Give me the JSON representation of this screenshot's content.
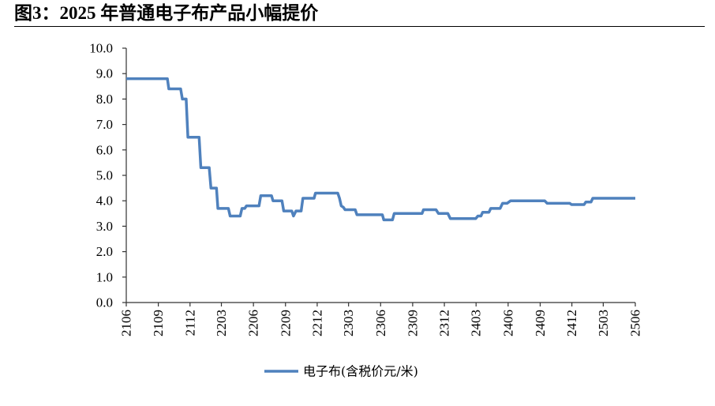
{
  "chart_data": {
    "type": "line",
    "title": "图3：2025 年普通电子布产品小幅提价",
    "x_ticks": [
      "2106",
      "2109",
      "2112",
      "2203",
      "2206",
      "2209",
      "2212",
      "2303",
      "2306",
      "2309",
      "2312",
      "2403",
      "2406",
      "2409",
      "2412",
      "2503",
      "2506"
    ],
    "xlim": [
      "2021-06-01",
      "2025-06-01"
    ],
    "y_ticks": [
      "0.0",
      "1.0",
      "2.0",
      "3.0",
      "4.0",
      "5.0",
      "6.0",
      "7.0",
      "8.0",
      "9.0",
      "10.0"
    ],
    "ylim": [
      0,
      10
    ],
    "grid": false,
    "legend": "bottom",
    "series": [
      {
        "name": "电子布(含税价元/米)",
        "color": "#4F81BD",
        "points": [
          [
            "2021-06-01",
            8.8
          ],
          [
            "2021-09-27",
            8.8
          ],
          [
            "2021-10-01",
            8.4
          ],
          [
            "2021-11-04",
            8.4
          ],
          [
            "2021-11-09",
            8.0
          ],
          [
            "2021-11-20",
            8.0
          ],
          [
            "2021-11-25",
            6.5
          ],
          [
            "2021-12-27",
            6.5
          ],
          [
            "2022-01-01",
            5.3
          ],
          [
            "2022-01-25",
            5.3
          ],
          [
            "2022-01-30",
            4.5
          ],
          [
            "2022-02-15",
            4.5
          ],
          [
            "2022-02-19",
            3.7
          ],
          [
            "2022-03-21",
            3.7
          ],
          [
            "2022-03-26",
            3.4
          ],
          [
            "2022-04-24",
            3.4
          ],
          [
            "2022-04-29",
            3.7
          ],
          [
            "2022-05-07",
            3.7
          ],
          [
            "2022-05-12",
            3.8
          ],
          [
            "2022-06-17",
            3.8
          ],
          [
            "2022-06-22",
            4.2
          ],
          [
            "2022-07-23",
            4.2
          ],
          [
            "2022-07-27",
            4.0
          ],
          [
            "2022-08-22",
            4.0
          ],
          [
            "2022-08-27",
            3.6
          ],
          [
            "2022-09-19",
            3.6
          ],
          [
            "2022-09-24",
            3.4
          ],
          [
            "2022-10-01",
            3.6
          ],
          [
            "2022-10-16",
            3.6
          ],
          [
            "2022-10-21",
            4.1
          ],
          [
            "2022-11-22",
            4.1
          ],
          [
            "2022-11-26",
            4.3
          ],
          [
            "2023-01-29",
            4.3
          ],
          [
            "2023-02-03",
            4.1
          ],
          [
            "2023-02-08",
            3.8
          ],
          [
            "2023-02-14",
            3.75
          ],
          [
            "2023-02-19",
            3.65
          ],
          [
            "2023-03-20",
            3.65
          ],
          [
            "2023-03-25",
            3.45
          ],
          [
            "2023-06-06",
            3.45
          ],
          [
            "2023-06-10",
            3.25
          ],
          [
            "2023-07-05",
            3.25
          ],
          [
            "2023-07-10",
            3.5
          ],
          [
            "2023-09-28",
            3.5
          ],
          [
            "2023-10-02",
            3.65
          ],
          [
            "2023-11-07",
            3.65
          ],
          [
            "2023-11-14",
            3.5
          ],
          [
            "2023-12-11",
            3.5
          ],
          [
            "2023-12-18",
            3.3
          ],
          [
            "2024-02-29",
            3.3
          ],
          [
            "2024-03-06",
            3.4
          ],
          [
            "2024-03-15",
            3.4
          ],
          [
            "2024-03-20",
            3.55
          ],
          [
            "2024-04-07",
            3.55
          ],
          [
            "2024-04-12",
            3.7
          ],
          [
            "2024-05-09",
            3.7
          ],
          [
            "2024-05-16",
            3.9
          ],
          [
            "2024-05-29",
            3.9
          ],
          [
            "2024-06-08",
            4.0
          ],
          [
            "2024-09-14",
            4.0
          ],
          [
            "2024-09-21",
            3.9
          ],
          [
            "2024-11-25",
            3.9
          ],
          [
            "2024-11-30",
            3.85
          ],
          [
            "2025-01-05",
            3.85
          ],
          [
            "2025-01-10",
            3.95
          ],
          [
            "2025-01-25",
            3.95
          ],
          [
            "2025-01-30",
            4.1
          ],
          [
            "2025-06-01",
            4.1
          ]
        ]
      }
    ]
  }
}
